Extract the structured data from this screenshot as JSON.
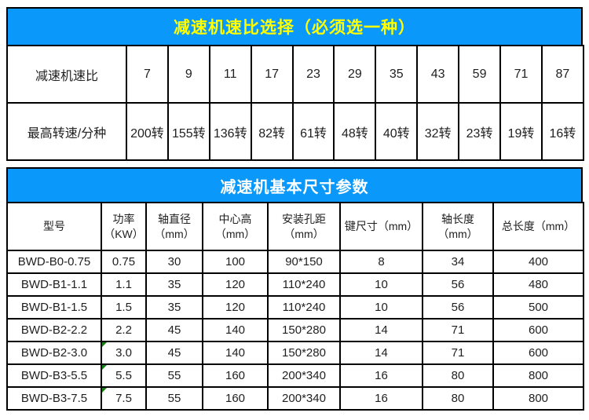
{
  "section1": {
    "title": "减速机速比选择（必须选一种）",
    "rows": [
      {
        "label": "减速机速比",
        "values": [
          "7",
          "9",
          "11",
          "17",
          "23",
          "29",
          "35",
          "43",
          "59",
          "71",
          "87"
        ]
      },
      {
        "label": "最高转速/分种",
        "values": [
          "200转",
          "155转",
          "136转",
          "82转",
          "61转",
          "48转",
          "40转",
          "32转",
          "23转",
          "19转",
          "16转"
        ]
      }
    ]
  },
  "section2": {
    "title": "减速机基本尺寸参数",
    "columns": [
      "型号",
      "功率（KW）",
      "轴直径（mm）",
      "中心高（mm）",
      "安装孔距（mm）",
      "键尺寸（mm）",
      "轴长度（mm）",
      "总长度（mm）"
    ],
    "rows": [
      [
        "BWD-B0-0.75",
        "0.75",
        "30",
        "100",
        "90*150",
        "8",
        "34",
        "400"
      ],
      [
        "BWD-B1-1.1",
        "1.1",
        "35",
        "120",
        "110*240",
        "10",
        "56",
        "480"
      ],
      [
        "BWD-B1-1.5",
        "1.5",
        "35",
        "120",
        "110*240",
        "10",
        "56",
        "500"
      ],
      [
        "BWD-B2-2.2",
        "2.2",
        "45",
        "140",
        "150*280",
        "14",
        "71",
        "600"
      ],
      [
        "BWD-B2-3.0",
        "3.0",
        "45",
        "140",
        "150*280",
        "14",
        "71",
        "600"
      ],
      [
        "BWD-B3-5.5",
        "5.5",
        "55",
        "160",
        "200*340",
        "16",
        "80",
        "800"
      ],
      [
        "BWD-B3-7.5",
        "7.5",
        "55",
        "160",
        "200*340",
        "16",
        "80",
        "800"
      ]
    ],
    "power_flag_rows": [
      4,
      5,
      6
    ],
    "power_flag_marker": "green-corner-triangle-icon"
  },
  "colors": {
    "header_bg": "#0a99fa",
    "header1_text": "#ffff00",
    "header2_text": "#ffffff",
    "border": "#000000",
    "cell_text": "#1f1f1f",
    "flag_triangle": "#178017"
  }
}
